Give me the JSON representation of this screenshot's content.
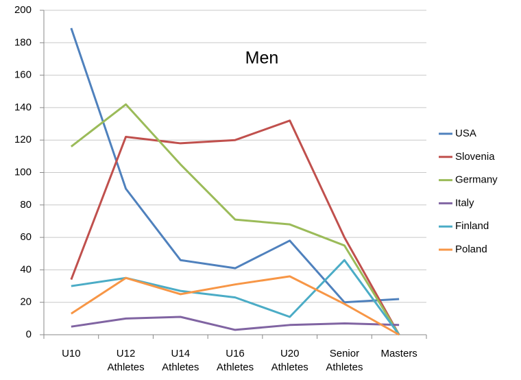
{
  "chart_data": {
    "type": "line",
    "title": "Men",
    "categories": [
      "U10",
      "U12 Athletes",
      "U14 Athletes",
      "U16 Athletes",
      "U20 Athletes",
      "Senior Athletes",
      "Masters"
    ],
    "series": [
      {
        "name": "USA",
        "color": "#4f81bd",
        "values": [
          189,
          90,
          46,
          41,
          58,
          20,
          22
        ]
      },
      {
        "name": "Slovenia",
        "color": "#c0504d",
        "values": [
          34,
          122,
          118,
          120,
          132,
          60,
          0
        ]
      },
      {
        "name": "Germany",
        "color": "#9bbb59",
        "values": [
          116,
          142,
          105,
          71,
          68,
          55,
          0
        ]
      },
      {
        "name": "Italy",
        "color": "#8064a2",
        "values": [
          5,
          10,
          11,
          3,
          6,
          7,
          6
        ]
      },
      {
        "name": "Finland",
        "color": "#4bacc6",
        "values": [
          30,
          35,
          27,
          23,
          11,
          46,
          0
        ]
      },
      {
        "name": "Poland",
        "color": "#f79646",
        "values": [
          13,
          35,
          25,
          31,
          36,
          19,
          0
        ]
      }
    ],
    "ylim": [
      0,
      200
    ],
    "yticks": [
      0,
      20,
      40,
      60,
      80,
      100,
      120,
      140,
      160,
      180,
      200
    ],
    "grid": true,
    "legend": "right"
  }
}
